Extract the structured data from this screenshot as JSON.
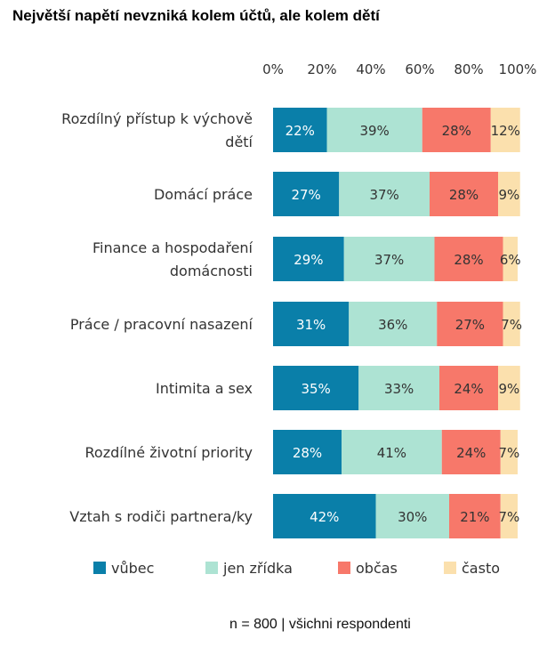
{
  "chart_data": {
    "type": "bar",
    "orientation": "horizontal",
    "stacked": true,
    "title": "Největší napětí nevzniká kolem účtů, ale kolem dětí",
    "note": "n = 800 | všichni respondenti",
    "xlim": [
      0,
      100
    ],
    "x_ticks": [
      "0%",
      "20%",
      "40%",
      "60%",
      "80%",
      "100%"
    ],
    "legend_position": "bottom",
    "grid": false,
    "categories": [
      [
        "Rozdílný přístup k výchově",
        "dětí"
      ],
      [
        "Domácí práce"
      ],
      [
        "Finance a hospodaření",
        "domácnosti"
      ],
      [
        "Práce / pracovní nasazení"
      ],
      [
        "Intimita a sex"
      ],
      [
        "Rozdílné životní priority"
      ],
      [
        "Vztah s rodiči partnera/ky"
      ]
    ],
    "series": [
      {
        "name": "vůbec",
        "color": "#0a7fa9",
        "label_color": "#ffffff",
        "values": [
          22,
          27,
          29,
          31,
          35,
          28,
          42
        ],
        "labels": [
          "22%",
          "27%",
          "29%",
          "31%",
          "35%",
          "28%",
          "42%"
        ]
      },
      {
        "name": "jen zřídka",
        "color": "#ade3d3",
        "label_color": "#333333",
        "values": [
          39,
          37,
          37,
          36,
          33,
          41,
          30
        ],
        "labels": [
          "39%",
          "37%",
          "37%",
          "36%",
          "33%",
          "41%",
          "30%"
        ]
      },
      {
        "name": "občas",
        "color": "#f7786a",
        "label_color": "#333333",
        "values": [
          28,
          28,
          28,
          27,
          24,
          24,
          21
        ],
        "labels": [
          "28%",
          "28%",
          "28%",
          "27%",
          "24%",
          "24%",
          "21%"
        ]
      },
      {
        "name": "často",
        "color": "#fbe0ad",
        "label_color": "#333333",
        "values": [
          12,
          9,
          6,
          7,
          9,
          7,
          7
        ],
        "labels": [
          "12%",
          "9%",
          "6%",
          "7%",
          "9%",
          "7%",
          "7%"
        ]
      }
    ]
  }
}
